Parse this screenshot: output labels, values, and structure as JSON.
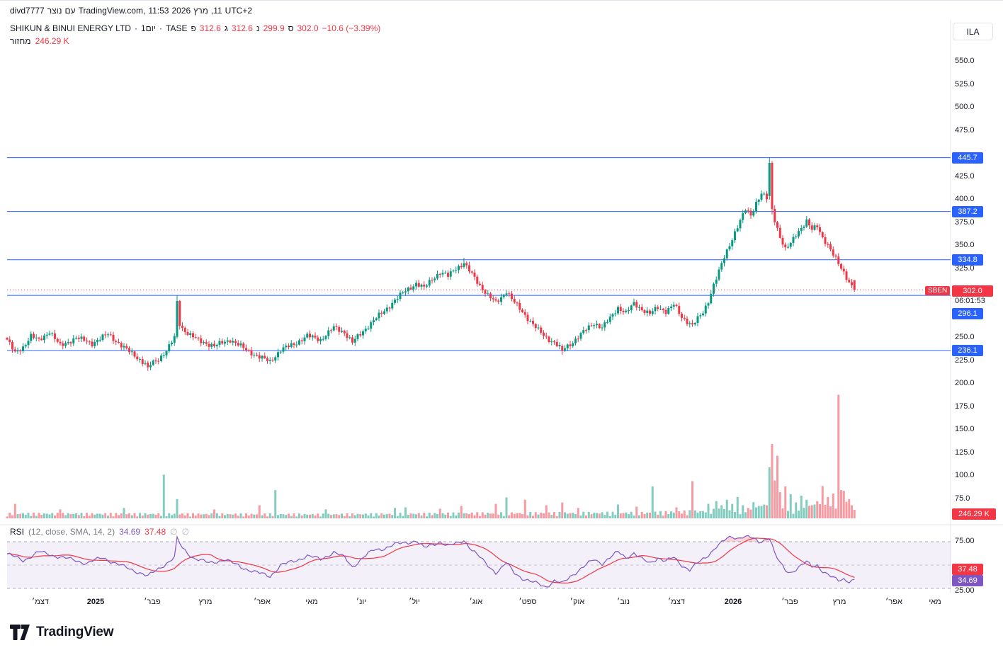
{
  "topbar": {
    "parts": [
      "divd7777",
      "נוצר",
      "עם",
      "TradingView.com,",
      "11:53",
      "2026",
      "מרץ",
      ",11",
      "UTC+2"
    ]
  },
  "header": {
    "currency": "ILA"
  },
  "legend": {
    "title_parts": [
      "SHIKUN & BINUI ENERGY LTD",
      "·",
      "1יום",
      "·",
      "TASE"
    ],
    "ohlc": [
      {
        "label": "פ",
        "value": "312.6"
      },
      {
        "label": "ג",
        "value": "312.6"
      },
      {
        "label": "נ",
        "value": "299.9"
      },
      {
        "label": "ס",
        "value": "302.0"
      }
    ],
    "change": "−10.6 (−3.39%)",
    "volume_label": "מחזור",
    "volume_value": "246.29 K"
  },
  "rsi_legend": {
    "name": "RSI",
    "params": "(12, close, SMA, 14, 2)",
    "value": "34.69",
    "sma_value": "37.48",
    "hidden1": "∅",
    "hidden2": "∅"
  },
  "rsi_axis": {
    "top": "75.00",
    "sma": "37.48",
    "value": "34.69",
    "bottom": "25.00"
  },
  "price_axis": {
    "ticks": [
      550,
      525,
      500,
      475,
      425,
      400,
      375,
      350,
      325,
      250,
      225,
      200,
      175,
      150,
      125,
      100,
      75
    ]
  },
  "last_price": {
    "tag": "SBEN",
    "price": "302.0",
    "countdown": "06:01:53"
  },
  "volume_axis_label": "246.29 K",
  "time_axis": {
    "labels": [
      [
        "דצמ׳",
        57,
        false
      ],
      [
        "2025",
        135,
        true
      ],
      [
        "פבר׳",
        215,
        false
      ],
      [
        "מרץ",
        290,
        false
      ],
      [
        "אפר׳",
        370,
        false
      ],
      [
        "מאי",
        440,
        false
      ],
      [
        "יונ׳",
        510,
        false
      ],
      [
        "יול׳",
        585,
        false
      ],
      [
        "אוג׳",
        672,
        false
      ],
      [
        "ספט׳",
        745,
        false
      ],
      [
        "אוק׳",
        815,
        false
      ],
      [
        "נוב׳",
        880,
        false
      ],
      [
        "דצמ׳",
        955,
        false
      ],
      [
        "2026",
        1035,
        true
      ],
      [
        "פבר׳",
        1115,
        false
      ],
      [
        "מרץ",
        1185,
        false
      ],
      [
        "אפר׳",
        1262,
        false
      ],
      [
        "מאי",
        1320,
        false
      ]
    ]
  },
  "logo_text": "TradingView",
  "colors": {
    "up": "#089981",
    "down": "#F23645",
    "level_blue": "#2962FF",
    "rsi_purple": "#7E57C2",
    "sma_red": "#F23645",
    "text": "#131722",
    "muted": "#787B86",
    "grid": "#E0E3EB"
  },
  "chart_data": {
    "type": "candlestick",
    "title": "SHIKUN & BINUI ENERGY LTD",
    "symbol": "SBEN",
    "exchange": "TASE",
    "interval": "1יום",
    "currency": "ILA",
    "n_bars": 320,
    "price_axis_range": [
      75,
      550
    ],
    "levels": [
      445.7,
      387.2,
      334.8,
      296.1,
      236.1
    ],
    "last_bar": {
      "open": 312.6,
      "high": 312.6,
      "low": 299.9,
      "close": 302.0,
      "change": -10.6,
      "change_pct": -3.39,
      "volume_k": 246.29
    },
    "wiggle": 3.2,
    "wick": 3,
    "close_anchors": [
      [
        0,
        248
      ],
      [
        3,
        233
      ],
      [
        6,
        240
      ],
      [
        9,
        252
      ],
      [
        12,
        247
      ],
      [
        16,
        257
      ],
      [
        20,
        241
      ],
      [
        26,
        250
      ],
      [
        32,
        244
      ],
      [
        38,
        254
      ],
      [
        44,
        239
      ],
      [
        48,
        231
      ],
      [
        53,
        219
      ],
      [
        57,
        227
      ],
      [
        60,
        236
      ],
      [
        63,
        250
      ],
      [
        64,
        290
      ],
      [
        65,
        263
      ],
      [
        68,
        255
      ],
      [
        72,
        247
      ],
      [
        78,
        241
      ],
      [
        84,
        248
      ],
      [
        90,
        237
      ],
      [
        95,
        229
      ],
      [
        99,
        224
      ],
      [
        103,
        237
      ],
      [
        108,
        243
      ],
      [
        113,
        252
      ],
      [
        118,
        248
      ],
      [
        123,
        261
      ],
      [
        127,
        256
      ],
      [
        130,
        245
      ],
      [
        134,
        257
      ],
      [
        138,
        269
      ],
      [
        142,
        279
      ],
      [
        146,
        291
      ],
      [
        150,
        301
      ],
      [
        154,
        309
      ],
      [
        157,
        304
      ],
      [
        160,
        314
      ],
      [
        163,
        321
      ],
      [
        166,
        317
      ],
      [
        169,
        326
      ],
      [
        172,
        330
      ],
      [
        175,
        319
      ],
      [
        178,
        307
      ],
      [
        181,
        296
      ],
      [
        184,
        288
      ],
      [
        186,
        294
      ],
      [
        188,
        301
      ],
      [
        191,
        288
      ],
      [
        194,
        278
      ],
      [
        197,
        268
      ],
      [
        200,
        258
      ],
      [
        203,
        250
      ],
      [
        206,
        245
      ],
      [
        209,
        237
      ],
      [
        212,
        243
      ],
      [
        215,
        251
      ],
      [
        218,
        259
      ],
      [
        221,
        266
      ],
      [
        224,
        261
      ],
      [
        227,
        271
      ],
      [
        230,
        283
      ],
      [
        233,
        277
      ],
      [
        236,
        287
      ],
      [
        239,
        281
      ],
      [
        242,
        276
      ],
      [
        245,
        283
      ],
      [
        248,
        279
      ],
      [
        251,
        286
      ],
      [
        254,
        272
      ],
      [
        258,
        264
      ],
      [
        262,
        277
      ],
      [
        264,
        290
      ],
      [
        266,
        308
      ],
      [
        268,
        322
      ],
      [
        270,
        337
      ],
      [
        272,
        351
      ],
      [
        274,
        365
      ],
      [
        276,
        377
      ],
      [
        278,
        389
      ],
      [
        280,
        383
      ],
      [
        282,
        397
      ],
      [
        284,
        407
      ],
      [
        286,
        401
      ],
      [
        287,
        440
      ],
      [
        288,
        390
      ],
      [
        289,
        378
      ],
      [
        291,
        360
      ],
      [
        293,
        346
      ],
      [
        295,
        352
      ],
      [
        297,
        362
      ],
      [
        299,
        370
      ],
      [
        301,
        377
      ],
      [
        303,
        367
      ],
      [
        305,
        371
      ],
      [
        307,
        359
      ],
      [
        309,
        351
      ],
      [
        311,
        340
      ],
      [
        313,
        330
      ],
      [
        315,
        321
      ],
      [
        317,
        311
      ],
      [
        319,
        302
      ]
    ],
    "special_bars": {
      "53": [
        223,
        225,
        214,
        218
      ],
      "64": [
        251,
        296,
        249,
        290
      ],
      "65": [
        290,
        291,
        259,
        263
      ],
      "172": [
        327,
        336.8,
        325,
        331
      ],
      "209": [
        241,
        243,
        231.5,
        236
      ],
      "287": [
        404,
        445.7,
        400,
        440
      ],
      "288": [
        440,
        442,
        384,
        390
      ],
      "319": [
        312.6,
        312.6,
        299.9,
        302
      ]
    },
    "volume_unit": "K",
    "volume_base_anchors": [
      [
        0,
        120
      ],
      [
        60,
        110
      ],
      [
        120,
        100
      ],
      [
        180,
        130
      ],
      [
        240,
        140
      ],
      [
        262,
        180
      ],
      [
        280,
        260
      ],
      [
        300,
        300
      ],
      [
        319,
        280
      ]
    ],
    "volume_spikes": [
      [
        3,
        420
      ],
      [
        20,
        260
      ],
      [
        44,
        300
      ],
      [
        59,
        1270
      ],
      [
        64,
        560
      ],
      [
        78,
        260
      ],
      [
        95,
        380
      ],
      [
        101,
        820
      ],
      [
        120,
        260
      ],
      [
        146,
        300
      ],
      [
        150,
        320
      ],
      [
        163,
        280
      ],
      [
        171,
        360
      ],
      [
        184,
        420
      ],
      [
        188,
        610
      ],
      [
        195,
        540
      ],
      [
        203,
        380
      ],
      [
        209,
        460
      ],
      [
        215,
        300
      ],
      [
        230,
        400
      ],
      [
        237,
        340
      ],
      [
        243,
        930
      ],
      [
        252,
        320
      ],
      [
        258,
        1080
      ],
      [
        264,
        420
      ],
      [
        267,
        500
      ],
      [
        269,
        380
      ],
      [
        271,
        540
      ],
      [
        273,
        420
      ],
      [
        275,
        620
      ],
      [
        277,
        380
      ],
      [
        279,
        300
      ],
      [
        281,
        470
      ],
      [
        283,
        360
      ],
      [
        285,
        400
      ],
      [
        287,
        1480
      ],
      [
        288,
        2160
      ],
      [
        289,
        1100
      ],
      [
        290,
        1820
      ],
      [
        291,
        760
      ],
      [
        293,
        930
      ],
      [
        295,
        700
      ],
      [
        297,
        460
      ],
      [
        299,
        660
      ],
      [
        301,
        540
      ],
      [
        303,
        380
      ],
      [
        305,
        500
      ],
      [
        307,
        940
      ],
      [
        309,
        620
      ],
      [
        311,
        720
      ],
      [
        313,
        3590
      ],
      [
        314,
        820
      ],
      [
        315,
        800
      ],
      [
        316,
        480
      ],
      [
        317,
        560
      ],
      [
        318,
        380
      ],
      [
        319,
        246.29
      ]
    ],
    "rsi": {
      "period": 12,
      "smoothing": "SMA 14",
      "current": 34.69,
      "sma_current": 37.48,
      "bands": [
        25,
        50,
        75
      ],
      "wiggle": 2.5,
      "anchors": [
        [
          0,
          62
        ],
        [
          6,
          55
        ],
        [
          12,
          64
        ],
        [
          18,
          60
        ],
        [
          24,
          56
        ],
        [
          30,
          52
        ],
        [
          36,
          58
        ],
        [
          44,
          48
        ],
        [
          50,
          42
        ],
        [
          53,
          38
        ],
        [
          58,
          48
        ],
        [
          63,
          58
        ],
        [
          64,
          78
        ],
        [
          66,
          68
        ],
        [
          70,
          58
        ],
        [
          76,
          52
        ],
        [
          82,
          56
        ],
        [
          88,
          48
        ],
        [
          94,
          42
        ],
        [
          99,
          38
        ],
        [
          103,
          50
        ],
        [
          108,
          54
        ],
        [
          113,
          60
        ],
        [
          118,
          56
        ],
        [
          123,
          64
        ],
        [
          127,
          58
        ],
        [
          130,
          48
        ],
        [
          134,
          58
        ],
        [
          138,
          66
        ],
        [
          142,
          68
        ],
        [
          146,
          72
        ],
        [
          150,
          74
        ],
        [
          154,
          76
        ],
        [
          157,
          68
        ],
        [
          160,
          72
        ],
        [
          163,
          75
        ],
        [
          166,
          70
        ],
        [
          170,
          74
        ],
        [
          172,
          77
        ],
        [
          175,
          66
        ],
        [
          178,
          58
        ],
        [
          181,
          50
        ],
        [
          184,
          42
        ],
        [
          186,
          46
        ],
        [
          188,
          52
        ],
        [
          191,
          42
        ],
        [
          194,
          36
        ],
        [
          197,
          32
        ],
        [
          200,
          30
        ],
        [
          203,
          27
        ],
        [
          206,
          33
        ],
        [
          209,
          30
        ],
        [
          212,
          38
        ],
        [
          215,
          44
        ],
        [
          218,
          50
        ],
        [
          221,
          56
        ],
        [
          224,
          52
        ],
        [
          227,
          58
        ],
        [
          230,
          64
        ],
        [
          233,
          58
        ],
        [
          236,
          63
        ],
        [
          239,
          56
        ],
        [
          242,
          52
        ],
        [
          245,
          58
        ],
        [
          248,
          54
        ],
        [
          251,
          58
        ],
        [
          254,
          50
        ],
        [
          257,
          45
        ],
        [
          260,
          52
        ],
        [
          263,
          58
        ],
        [
          265,
          64
        ],
        [
          267,
          70
        ],
        [
          269,
          74
        ],
        [
          271,
          78
        ],
        [
          273,
          80
        ],
        [
          275,
          79
        ],
        [
          277,
          81
        ],
        [
          279,
          80
        ],
        [
          281,
          78
        ],
        [
          283,
          74
        ],
        [
          285,
          77
        ],
        [
          287,
          80
        ],
        [
          288,
          72
        ],
        [
          289,
          62
        ],
        [
          291,
          52
        ],
        [
          293,
          44
        ],
        [
          295,
          42
        ],
        [
          297,
          46
        ],
        [
          299,
          50
        ],
        [
          301,
          53
        ],
        [
          303,
          48
        ],
        [
          305,
          50
        ],
        [
          307,
          44
        ],
        [
          309,
          40
        ],
        [
          311,
          36
        ],
        [
          313,
          33
        ],
        [
          315,
          35
        ],
        [
          317,
          33
        ],
        [
          319,
          34.69
        ]
      ]
    }
  }
}
